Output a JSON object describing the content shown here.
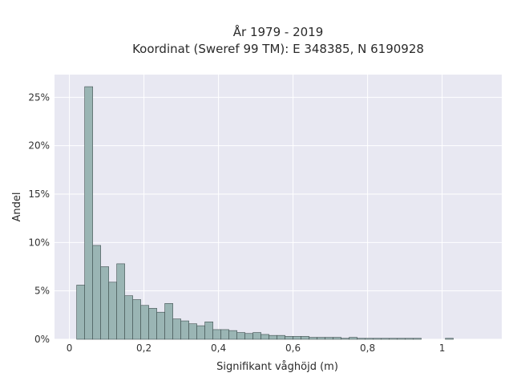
{
  "chart_data": {
    "type": "bar",
    "title_line1": "År 1979 - 2019",
    "title_line2": "Koordinat (Sweref 99 TM): E 348385, N 6190928",
    "xlabel": "Signifikant våghöjd (m)",
    "ylabel": "Andel",
    "xlim": [
      -0.04,
      1.16
    ],
    "ylim": [
      0,
      0.2735
    ],
    "x_ticks": [
      0,
      0.2,
      0.4,
      0.6,
      0.8,
      1
    ],
    "x_tick_labels": [
      "0",
      "0,2",
      "0,4",
      "0,6",
      "0,8",
      "1"
    ],
    "y_ticks": [
      0,
      0.05,
      0.1,
      0.15,
      0.2,
      0.25
    ],
    "y_tick_labels": [
      "0%",
      "5%",
      "10%",
      "15%",
      "20%",
      "25%"
    ],
    "bin_width": 0.0215,
    "bin_start": 0.0195,
    "values": [
      0.056,
      0.261,
      0.097,
      0.075,
      0.059,
      0.078,
      0.045,
      0.041,
      0.035,
      0.032,
      0.028,
      0.037,
      0.021,
      0.019,
      0.016,
      0.014,
      0.018,
      0.01,
      0.01,
      0.009,
      0.007,
      0.006,
      0.007,
      0.005,
      0.004,
      0.004,
      0.003,
      0.003,
      0.003,
      0.002,
      0.002,
      0.002,
      0.002,
      0.001,
      0.002,
      0.001,
      0.001,
      0.001,
      0.001,
      0.001,
      0.001,
      0.001,
      0.001,
      0,
      0,
      0,
      0.001
    ],
    "colors": {
      "bar_fill": "#9ab5b4",
      "bar_stroke": "#3f4f4f",
      "plot_bg": "#e8e8f2",
      "grid": "#ffffff"
    },
    "grid": true
  }
}
